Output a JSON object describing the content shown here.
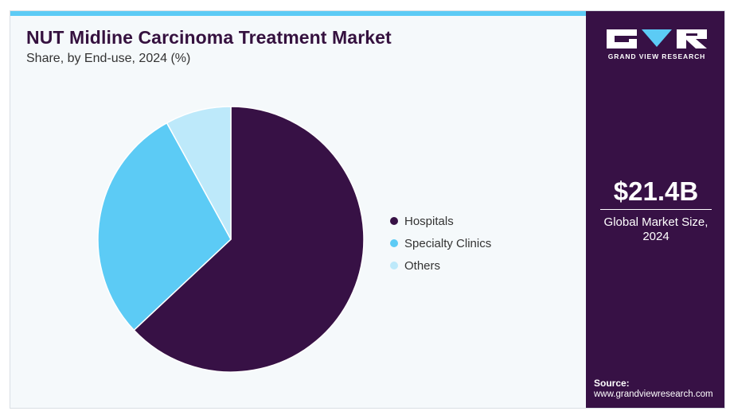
{
  "header": {
    "title": "NUT Midline Carcinoma Treatment Market",
    "subtitle": "Share, by End-use, 2024 (%)"
  },
  "chart_data": {
    "type": "pie",
    "categories": [
      "Hospitals",
      "Specialty Clinics",
      "Others"
    ],
    "values": [
      63,
      29,
      8
    ],
    "unit": "%",
    "colors": [
      "#371145",
      "#5ccbf5",
      "#bde9fa"
    ],
    "legend_position": "right",
    "start_angle_deg": 0,
    "direction": "clockwise"
  },
  "legend": {
    "items": [
      {
        "label": "Hospitals",
        "color": "#371145"
      },
      {
        "label": "Specialty Clinics",
        "color": "#5ccbf5"
      },
      {
        "label": "Others",
        "color": "#bde9fa"
      }
    ]
  },
  "sidebar": {
    "logo_text": "GRAND VIEW RESEARCH",
    "market_value": "$21.4B",
    "market_label_line1": "Global Market Size,",
    "market_label_line2": "2024",
    "source_label": "Source:",
    "source_url": "www.grandviewresearch.com"
  },
  "colors": {
    "brand_dark": "#371145",
    "accent": "#5ccbf5",
    "light": "#bde9fa",
    "panel_bg": "#f5f9fb"
  }
}
